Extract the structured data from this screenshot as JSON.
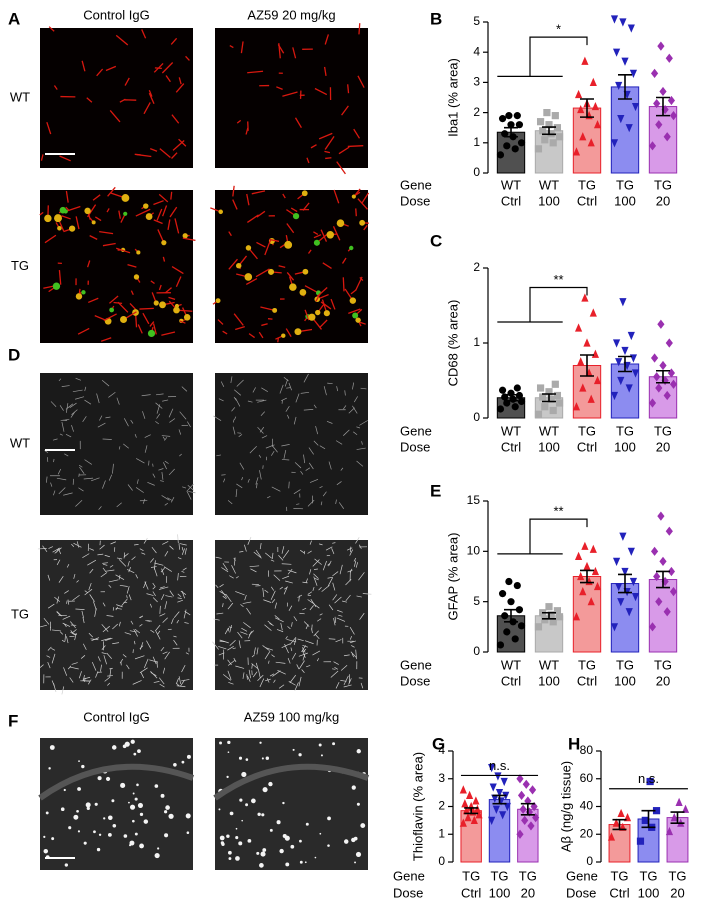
{
  "image_panels": [
    {
      "letter": "A",
      "column_labels": [
        "Control IgG",
        "AZ59 20 mg/kg"
      ],
      "row_labels": [
        "WT",
        "TG"
      ]
    },
    {
      "letter": "D",
      "row_labels": [
        "WT",
        "TG"
      ]
    },
    {
      "letter": "F",
      "column_labels": [
        "Control IgG",
        "AZ59 100 mg/kg"
      ]
    }
  ],
  "chart_data": [
    {
      "type": "bar",
      "letter": "B",
      "ylabel": "Iba1 (% area)",
      "ylim": [
        0,
        5
      ],
      "yticks": [
        0,
        1,
        2,
        3,
        4,
        5
      ],
      "category_rows": [
        {
          "label": "Gene",
          "values": [
            "WT",
            "WT",
            "TG",
            "TG",
            "TG"
          ]
        },
        {
          "label": "Dose",
          "values": [
            "Ctrl",
            "100",
            "Ctrl",
            "100",
            "20"
          ]
        }
      ],
      "values": [
        1.35,
        1.4,
        2.15,
        2.85,
        2.2
      ],
      "errors": [
        0.15,
        0.12,
        0.3,
        0.4,
        0.3
      ],
      "points": [
        [
          0.6,
          0.8,
          0.9,
          1.0,
          1.2,
          1.3,
          1.6,
          1.6,
          1.8,
          1.9,
          1.9
        ],
        [
          0.8,
          1.0,
          1.1,
          1.2,
          1.3,
          1.4,
          1.5,
          1.6,
          1.7,
          1.9,
          2.0
        ],
        [
          0.7,
          1.0,
          1.2,
          1.6,
          1.9,
          2.1,
          2.2,
          2.3,
          2.6,
          3.0,
          3.7
        ],
        [
          1.0,
          1.5,
          1.8,
          2.2,
          2.6,
          2.9,
          3.3,
          3.7,
          4.0,
          4.8,
          5.0,
          5.1
        ],
        [
          0.9,
          1.2,
          1.6,
          1.9,
          2.1,
          2.3,
          2.4,
          2.7,
          3.3,
          3.8,
          4.2
        ]
      ],
      "bar_colors": [
        "#505050",
        "#c8c8c8",
        "#f39a9a",
        "#8c8cf0",
        "#d89ae8"
      ],
      "point_colors": [
        "#000000",
        "#aaaaaa",
        "#e8202a",
        "#2222bb",
        "#9a30b0"
      ],
      "markers": [
        "circle",
        "square",
        "triangle-up",
        "triangle-down",
        "diamond"
      ],
      "significance": "*"
    },
    {
      "type": "bar",
      "letter": "C",
      "ylabel": "CD68 (% area)",
      "ylim": [
        0,
        2
      ],
      "yticks": [
        0,
        1,
        2
      ],
      "category_rows": [
        {
          "label": "Gene",
          "values": [
            "WT",
            "WT",
            "TG",
            "TG",
            "TG"
          ]
        },
        {
          "label": "Dose",
          "values": [
            "Ctrl",
            "100",
            "Ctrl",
            "100",
            "20"
          ]
        }
      ],
      "values": [
        0.27,
        0.27,
        0.7,
        0.72,
        0.55
      ],
      "errors": [
        0.04,
        0.05,
        0.14,
        0.1,
        0.08
      ],
      "points": [
        [
          0.12,
          0.15,
          0.2,
          0.22,
          0.25,
          0.28,
          0.3,
          0.33,
          0.37,
          0.4
        ],
        [
          0.05,
          0.1,
          0.15,
          0.2,
          0.25,
          0.28,
          0.3,
          0.35,
          0.4,
          0.45
        ],
        [
          0.15,
          0.25,
          0.4,
          0.5,
          0.6,
          0.75,
          0.85,
          1.0,
          1.2,
          1.4,
          1.6
        ],
        [
          0.3,
          0.4,
          0.5,
          0.6,
          0.7,
          0.75,
          0.8,
          0.9,
          1.0,
          1.1,
          1.55
        ],
        [
          0.2,
          0.3,
          0.4,
          0.45,
          0.5,
          0.55,
          0.6,
          0.7,
          0.8,
          1.0,
          1.25
        ]
      ],
      "bar_colors": [
        "#505050",
        "#c8c8c8",
        "#f39a9a",
        "#8c8cf0",
        "#d89ae8"
      ],
      "point_colors": [
        "#000000",
        "#aaaaaa",
        "#e8202a",
        "#2222bb",
        "#9a30b0"
      ],
      "markers": [
        "circle",
        "square",
        "triangle-up",
        "triangle-down",
        "diamond"
      ],
      "significance": "**"
    },
    {
      "type": "bar",
      "letter": "E",
      "ylabel": "GFAP (% area)",
      "ylim": [
        0,
        15
      ],
      "yticks": [
        0,
        5,
        10,
        15
      ],
      "category_rows": [
        {
          "label": "Gene",
          "values": [
            "WT",
            "WT",
            "TG",
            "TG",
            "TG"
          ]
        },
        {
          "label": "Dose",
          "values": [
            "Ctrl",
            "100",
            "Ctrl",
            "100",
            "20"
          ]
        }
      ],
      "values": [
        3.6,
        3.6,
        7.5,
        6.8,
        7.2
      ],
      "errors": [
        0.6,
        0.3,
        0.6,
        0.9,
        0.8
      ],
      "points": [
        [
          0.7,
          1.3,
          2,
          2.6,
          3,
          3.6,
          4.2,
          5,
          5.8,
          6.6,
          7
        ],
        [
          2.5,
          3,
          3.2,
          3.5,
          3.7,
          3.9,
          4.1,
          4.5
        ],
        [
          3.5,
          5,
          6,
          6.5,
          7,
          7.5,
          8,
          8.5,
          9.5,
          10.2,
          10.5
        ],
        [
          2.5,
          4,
          5,
          5.5,
          6,
          6.5,
          7,
          8,
          9,
          10,
          11.5
        ],
        [
          2.5,
          4,
          5,
          6,
          7,
          7.5,
          8,
          9,
          10,
          12,
          13.5
        ]
      ],
      "bar_colors": [
        "#505050",
        "#c8c8c8",
        "#f39a9a",
        "#8c8cf0",
        "#d89ae8"
      ],
      "point_colors": [
        "#000000",
        "#aaaaaa",
        "#e8202a",
        "#2222bb",
        "#9a30b0"
      ],
      "markers": [
        "circle",
        "square",
        "triangle-up",
        "triangle-down",
        "diamond"
      ],
      "significance": "**"
    },
    {
      "type": "bar",
      "letter": "G",
      "ylabel": "Thioflavin (% area)",
      "ylim": [
        0,
        4
      ],
      "yticks": [
        0,
        1,
        2,
        3,
        4
      ],
      "category_rows": [
        {
          "label": "Gene",
          "values": [
            "TG",
            "TG",
            "TG"
          ]
        },
        {
          "label": "Dose",
          "values": [
            "Ctrl",
            "100",
            "20"
          ]
        }
      ],
      "values": [
        1.85,
        2.25,
        1.9
      ],
      "errors": [
        0.1,
        0.15,
        0.2
      ],
      "points": [
        [
          1.4,
          1.5,
          1.6,
          1.7,
          1.8,
          1.85,
          1.9,
          2.0,
          2.1,
          2.2,
          2.4,
          2.6
        ],
        [
          1.5,
          1.7,
          1.9,
          2.0,
          2.2,
          2.3,
          2.4,
          2.5,
          2.7,
          2.9,
          3.1,
          3.4
        ],
        [
          1.0,
          1.3,
          1.5,
          1.6,
          1.8,
          1.9,
          2.0,
          2.2,
          2.4,
          2.6,
          2.8,
          3.0
        ]
      ],
      "bar_colors": [
        "#f39a9a",
        "#8c8cf0",
        "#d89ae8"
      ],
      "point_colors": [
        "#e8202a",
        "#2222bb",
        "#9a30b0"
      ],
      "markers": [
        "triangle-up",
        "triangle-down",
        "diamond"
      ],
      "significance": "n.s."
    },
    {
      "type": "bar",
      "letter": "H",
      "ylabel": "Aβ (ng/g tissue)",
      "ylim": [
        0,
        80
      ],
      "yticks": [
        0,
        20,
        40,
        60,
        80
      ],
      "category_rows": [
        {
          "label": "Gene",
          "values": [
            "TG",
            "TG",
            "TG"
          ]
        },
        {
          "label": "Dose",
          "values": [
            "Ctrl",
            "100",
            "20"
          ]
        }
      ],
      "values": [
        27,
        31,
        32
      ],
      "errors": [
        3.5,
        6,
        4
      ],
      "points": [
        [
          18,
          25,
          28,
          32,
          35
        ],
        [
          15,
          25,
          30,
          37,
          58
        ],
        [
          22,
          28,
          32,
          38,
          43
        ]
      ],
      "bar_colors": [
        "#f39a9a",
        "#8c8cf0",
        "#d89ae8"
      ],
      "point_colors": [
        "#e8202a",
        "#2222bb",
        "#9a30b0"
      ],
      "markers": [
        "triangle-up",
        "square",
        "triangle-up"
      ],
      "significance": "n.s."
    }
  ]
}
